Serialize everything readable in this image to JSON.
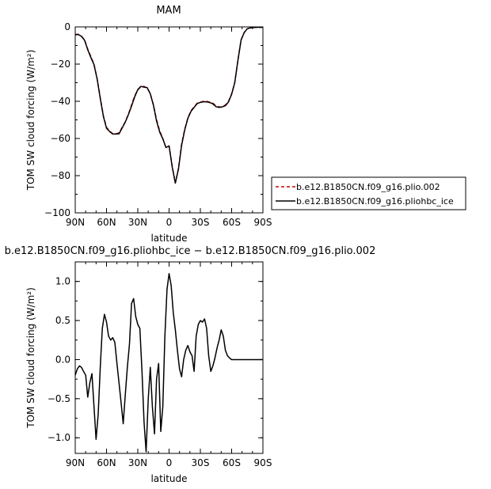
{
  "chart_data": [
    {
      "type": "line",
      "title": "MAM",
      "xlabel": "latitude",
      "ylabel": "TOM SW cloud forcing (W/m²)",
      "xlim": [
        90,
        -90
      ],
      "ylim": [
        -100,
        0
      ],
      "x_ticks": [
        90,
        60,
        30,
        0,
        -30,
        -60,
        -90
      ],
      "x_tick_labels": [
        "90N",
        "60N",
        "30N",
        "0",
        "30S",
        "60S",
        "90S"
      ],
      "y_ticks": [
        0,
        -20,
        -40,
        -60,
        -80,
        -100
      ],
      "y_tick_labels": [
        "0",
        "−20",
        "−40",
        "−60",
        "−80",
        "−100"
      ],
      "legend": {
        "placement": "outside-right",
        "entries": [
          "b.e12.B1850CN.f09_g16.plio.002",
          "b.e12.B1850CN.f09_g16.pliohbc_ice"
        ]
      },
      "x": [
        90,
        87,
        84,
        81,
        78,
        75,
        72,
        69,
        66,
        63,
        60,
        57,
        54,
        51,
        48,
        45,
        42,
        39,
        36,
        33,
        30,
        27,
        24,
        21,
        18,
        15,
        12,
        9,
        6,
        3,
        0,
        -3,
        -6,
        -9,
        -12,
        -15,
        -18,
        -21,
        -24,
        -27,
        -30,
        -33,
        -36,
        -39,
        -42,
        -45,
        -48,
        -51,
        -54,
        -57,
        -60,
        -63,
        -66,
        -69,
        -72,
        -75,
        -78,
        -81,
        -84,
        -87,
        -90
      ],
      "series": [
        {
          "name": "b.e12.B1850CN.f09_g16.plio.002",
          "color": "#cc0000",
          "dash": "dashed",
          "values": [
            -4,
            -4,
            -5,
            -7,
            -12,
            -16,
            -20,
            -28,
            -38,
            -48,
            -54,
            -56,
            -57.5,
            -57.5,
            -57,
            -54,
            -51,
            -47,
            -42,
            -37,
            -34,
            -32,
            -32,
            -33,
            -36,
            -42,
            -50,
            -56,
            -60,
            -65,
            -64,
            -75,
            -84,
            -76,
            -63,
            -55,
            -49,
            -45,
            -43,
            -41,
            -40.5,
            -40,
            -40,
            -40.5,
            -41,
            -42.5,
            -43,
            -43,
            -42,
            -40,
            -36,
            -30,
            -18,
            -7,
            -3,
            -1,
            -0.5,
            -0.3,
            -0.2,
            -0.2,
            -0.2
          ]
        },
        {
          "name": "b.e12.B1850CN.f09_g16.pliohbc_ice",
          "color": "#000000",
          "dash": "solid",
          "values": [
            -4.2,
            -4.1,
            -5.1,
            -7.2,
            -12.3,
            -16.5,
            -20.3,
            -28.1,
            -38.5,
            -48.2,
            -54.5,
            -56.3,
            -57.6,
            -57.6,
            -57.5,
            -54.3,
            -51.2,
            -47.2,
            -42.6,
            -37.6,
            -33.7,
            -32,
            -32.4,
            -32.7,
            -36,
            -42.2,
            -50.7,
            -56.6,
            -60.2,
            -64.9,
            -64,
            -75.5,
            -84,
            -76.3,
            -63.8,
            -55.3,
            -49.2,
            -45.4,
            -43.3,
            -41.2,
            -40.6,
            -40.2,
            -40.3,
            -40.7,
            -41.4,
            -42.9,
            -43.3,
            -43,
            -42.4,
            -40.4,
            -36.2,
            -30.1,
            -18.1,
            -7.1,
            -3,
            -1,
            -0.5,
            -0.3,
            -0.2,
            -0.2,
            -0.2
          ]
        }
      ]
    },
    {
      "type": "line",
      "title": "b.e12.B1850CN.f09_g16.pliohbc_ice − b.e12.B1850CN.f09_g16.plio.002",
      "xlabel": "latitude",
      "ylabel": "TOM SW cloud forcing (W/m²)",
      "xlim": [
        90,
        -90
      ],
      "ylim": [
        -1.2,
        1.25
      ],
      "x_ticks": [
        90,
        60,
        30,
        0,
        -30,
        -60,
        -90
      ],
      "x_tick_labels": [
        "90N",
        "60N",
        "30N",
        "0",
        "30S",
        "60S",
        "90S"
      ],
      "y_ticks": [
        1.0,
        0.5,
        0.0,
        -0.5,
        -1.0
      ],
      "y_tick_labels": [
        "1.0",
        "0.5",
        "0.0",
        "−0.5",
        "−1.0"
      ],
      "x": [
        90,
        88,
        86,
        84,
        82,
        80,
        78,
        76,
        74,
        72,
        70,
        68,
        66,
        64,
        62,
        60,
        58,
        56,
        54,
        52,
        50,
        48,
        46,
        44,
        42,
        40,
        38,
        36,
        34,
        32,
        30,
        28,
        26,
        24,
        22,
        20,
        18,
        16,
        14,
        12,
        10,
        8,
        6,
        4,
        2,
        0,
        -2,
        -4,
        -6,
        -8,
        -10,
        -12,
        -14,
        -16,
        -18,
        -20,
        -22,
        -24,
        -26,
        -28,
        -30,
        -32,
        -34,
        -36,
        -38,
        -40,
        -42,
        -44,
        -46,
        -48,
        -50,
        -52,
        -54,
        -56,
        -58,
        -60,
        -62,
        -64,
        -66,
        -68,
        -70,
        -72,
        -74,
        -76,
        -78,
        -80,
        -82,
        -84,
        -86,
        -88,
        -90
      ],
      "series": [
        {
          "name": "b.e12.B1850CN.f09_g16.pliohbc_ice − b.e12.B1850CN.f09_g16.plio.002",
          "color": "#000000",
          "dash": "solid",
          "values": [
            -0.2,
            -0.12,
            -0.08,
            -0.1,
            -0.15,
            -0.2,
            -0.48,
            -0.3,
            -0.18,
            -0.6,
            -1.02,
            -0.7,
            -0.1,
            0.4,
            0.58,
            0.48,
            0.3,
            0.25,
            0.28,
            0.22,
            -0.05,
            -0.3,
            -0.55,
            -0.82,
            -0.45,
            -0.1,
            0.2,
            0.72,
            0.78,
            0.55,
            0.45,
            0.4,
            -0.15,
            -0.8,
            -1.18,
            -0.5,
            -0.1,
            -0.6,
            -0.95,
            -0.25,
            -0.05,
            -0.92,
            -0.6,
            0.3,
            0.9,
            1.1,
            0.95,
            0.6,
            0.38,
            0.12,
            -0.12,
            -0.22,
            0.0,
            0.12,
            0.18,
            0.1,
            0.05,
            -0.15,
            0.3,
            0.45,
            0.5,
            0.48,
            0.52,
            0.4,
            0.05,
            -0.15,
            -0.08,
            0.02,
            0.15,
            0.25,
            0.38,
            0.3,
            0.12,
            0.05,
            0.02,
            0.0,
            0.0,
            0.0,
            0.0,
            0.0,
            0.0,
            0.0,
            0.0,
            0.0,
            0.0,
            0.0,
            0.0,
            0.0,
            0.0,
            0.0,
            0.0
          ]
        }
      ]
    }
  ]
}
